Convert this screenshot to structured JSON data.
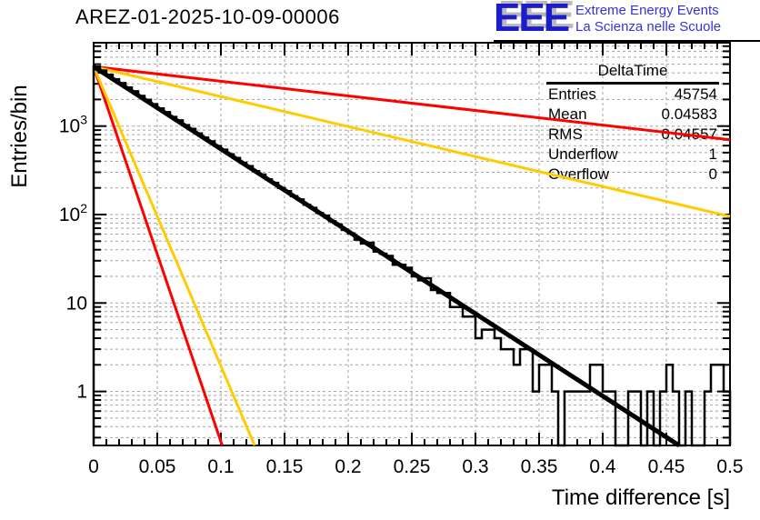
{
  "header": {
    "title": "AREZ-01-2025-10-09-00006",
    "logo": {
      "acronym": "EEE",
      "line1": "Extreme Energy Events",
      "line2": "La Scienza nelle Scuole",
      "acronym_color": "#1c1ccd",
      "text_color": "#3434d6"
    }
  },
  "stats_box": {
    "title": "DeltaTime",
    "rows": [
      {
        "label": "Entries",
        "value": "45754"
      },
      {
        "label": "Mean",
        "value": "0.04583"
      },
      {
        "label": "RMS",
        "value": "0.04557"
      },
      {
        "label": "Underflow",
        "value": "1"
      },
      {
        "label": "Overflow",
        "value": "0"
      }
    ]
  },
  "colors": {
    "histogram": "#000000",
    "fit": "#000000",
    "red_line": "#ff0000",
    "yellow_line": "#ffcc00",
    "grid": "#a2a2a2",
    "frame": "#000000"
  },
  "chart_data": {
    "type": "bar",
    "subtype": "log-histogram-with-exponential-fits",
    "title": "AREZ-01-2025-10-09-00006",
    "xlabel": "Time difference [s]",
    "ylabel": "Entries/bin",
    "x_range": [
      0,
      0.5
    ],
    "y_scale": "log",
    "y_range": [
      0.245,
      8750
    ],
    "grid": true,
    "x_major_ticks": [
      0,
      0.05,
      0.1,
      0.15,
      0.2,
      0.25,
      0.3,
      0.35,
      0.4,
      0.45,
      0.5
    ],
    "x_tick_labels": [
      "0",
      "0.05",
      "0.1",
      "0.15",
      "0.2",
      "0.25",
      "0.3",
      "0.35",
      "0.4",
      "0.45",
      "0.5"
    ],
    "x_minor_step": 0.01,
    "y_major_ticks": [
      1,
      10,
      100,
      1000
    ],
    "y_tick_labels": [
      {
        "base": "1",
        "exp": ""
      },
      {
        "base": "10",
        "exp": ""
      },
      {
        "base": "10",
        "exp": "2"
      },
      {
        "base": "10",
        "exp": "3"
      }
    ],
    "histogram": {
      "name": "DeltaTime",
      "bin_width": 0.005,
      "values": [
        4712,
        4238,
        3802,
        3391,
        3060,
        2726,
        2470,
        2190,
        1985,
        1766,
        1585,
        1435,
        1270,
        1160,
        1025,
        930,
        826,
        740,
        672,
        595,
        541,
        480,
        436,
        385,
        352,
        310,
        283,
        250,
        228,
        200,
        184,
        161,
        148,
        129,
        119,
        104,
        97,
        84,
        77,
        67,
        61,
        52,
        47,
        48,
        38,
        36,
        34,
        27,
        27,
        25,
        20,
        18,
        19,
        14,
        13,
        13,
        9,
        9,
        7,
        7,
        4,
        5,
        5,
        4,
        3,
        3,
        2,
        3,
        3,
        1,
        2,
        2,
        1,
        0,
        1,
        1,
        1,
        1,
        2,
        2,
        1,
        1,
        0,
        0,
        1,
        1,
        0,
        1,
        0,
        1,
        2,
        1,
        0,
        1,
        0,
        0,
        1,
        2,
        2,
        1
      ]
    },
    "fit_line": {
      "name": "exponential-fit",
      "x": [
        0,
        0.46
      ],
      "y": [
        4700,
        0.245
      ]
    },
    "reference_lines": [
      {
        "name": "red-shallow",
        "color_key": "red_line",
        "x": [
          0,
          0.5
        ],
        "y": [
          4700,
          700
        ]
      },
      {
        "name": "yellow-mid",
        "color_key": "yellow_line",
        "x": [
          0,
          0.5
        ],
        "y": [
          4700,
          95
        ]
      },
      {
        "name": "red-steep",
        "color_key": "red_line",
        "x": [
          0,
          0.101
        ],
        "y": [
          4700,
          0.245
        ]
      },
      {
        "name": "yellow-steep",
        "color_key": "yellow_line",
        "x": [
          0,
          0.1265
        ],
        "y": [
          4700,
          0.245
        ]
      }
    ]
  }
}
